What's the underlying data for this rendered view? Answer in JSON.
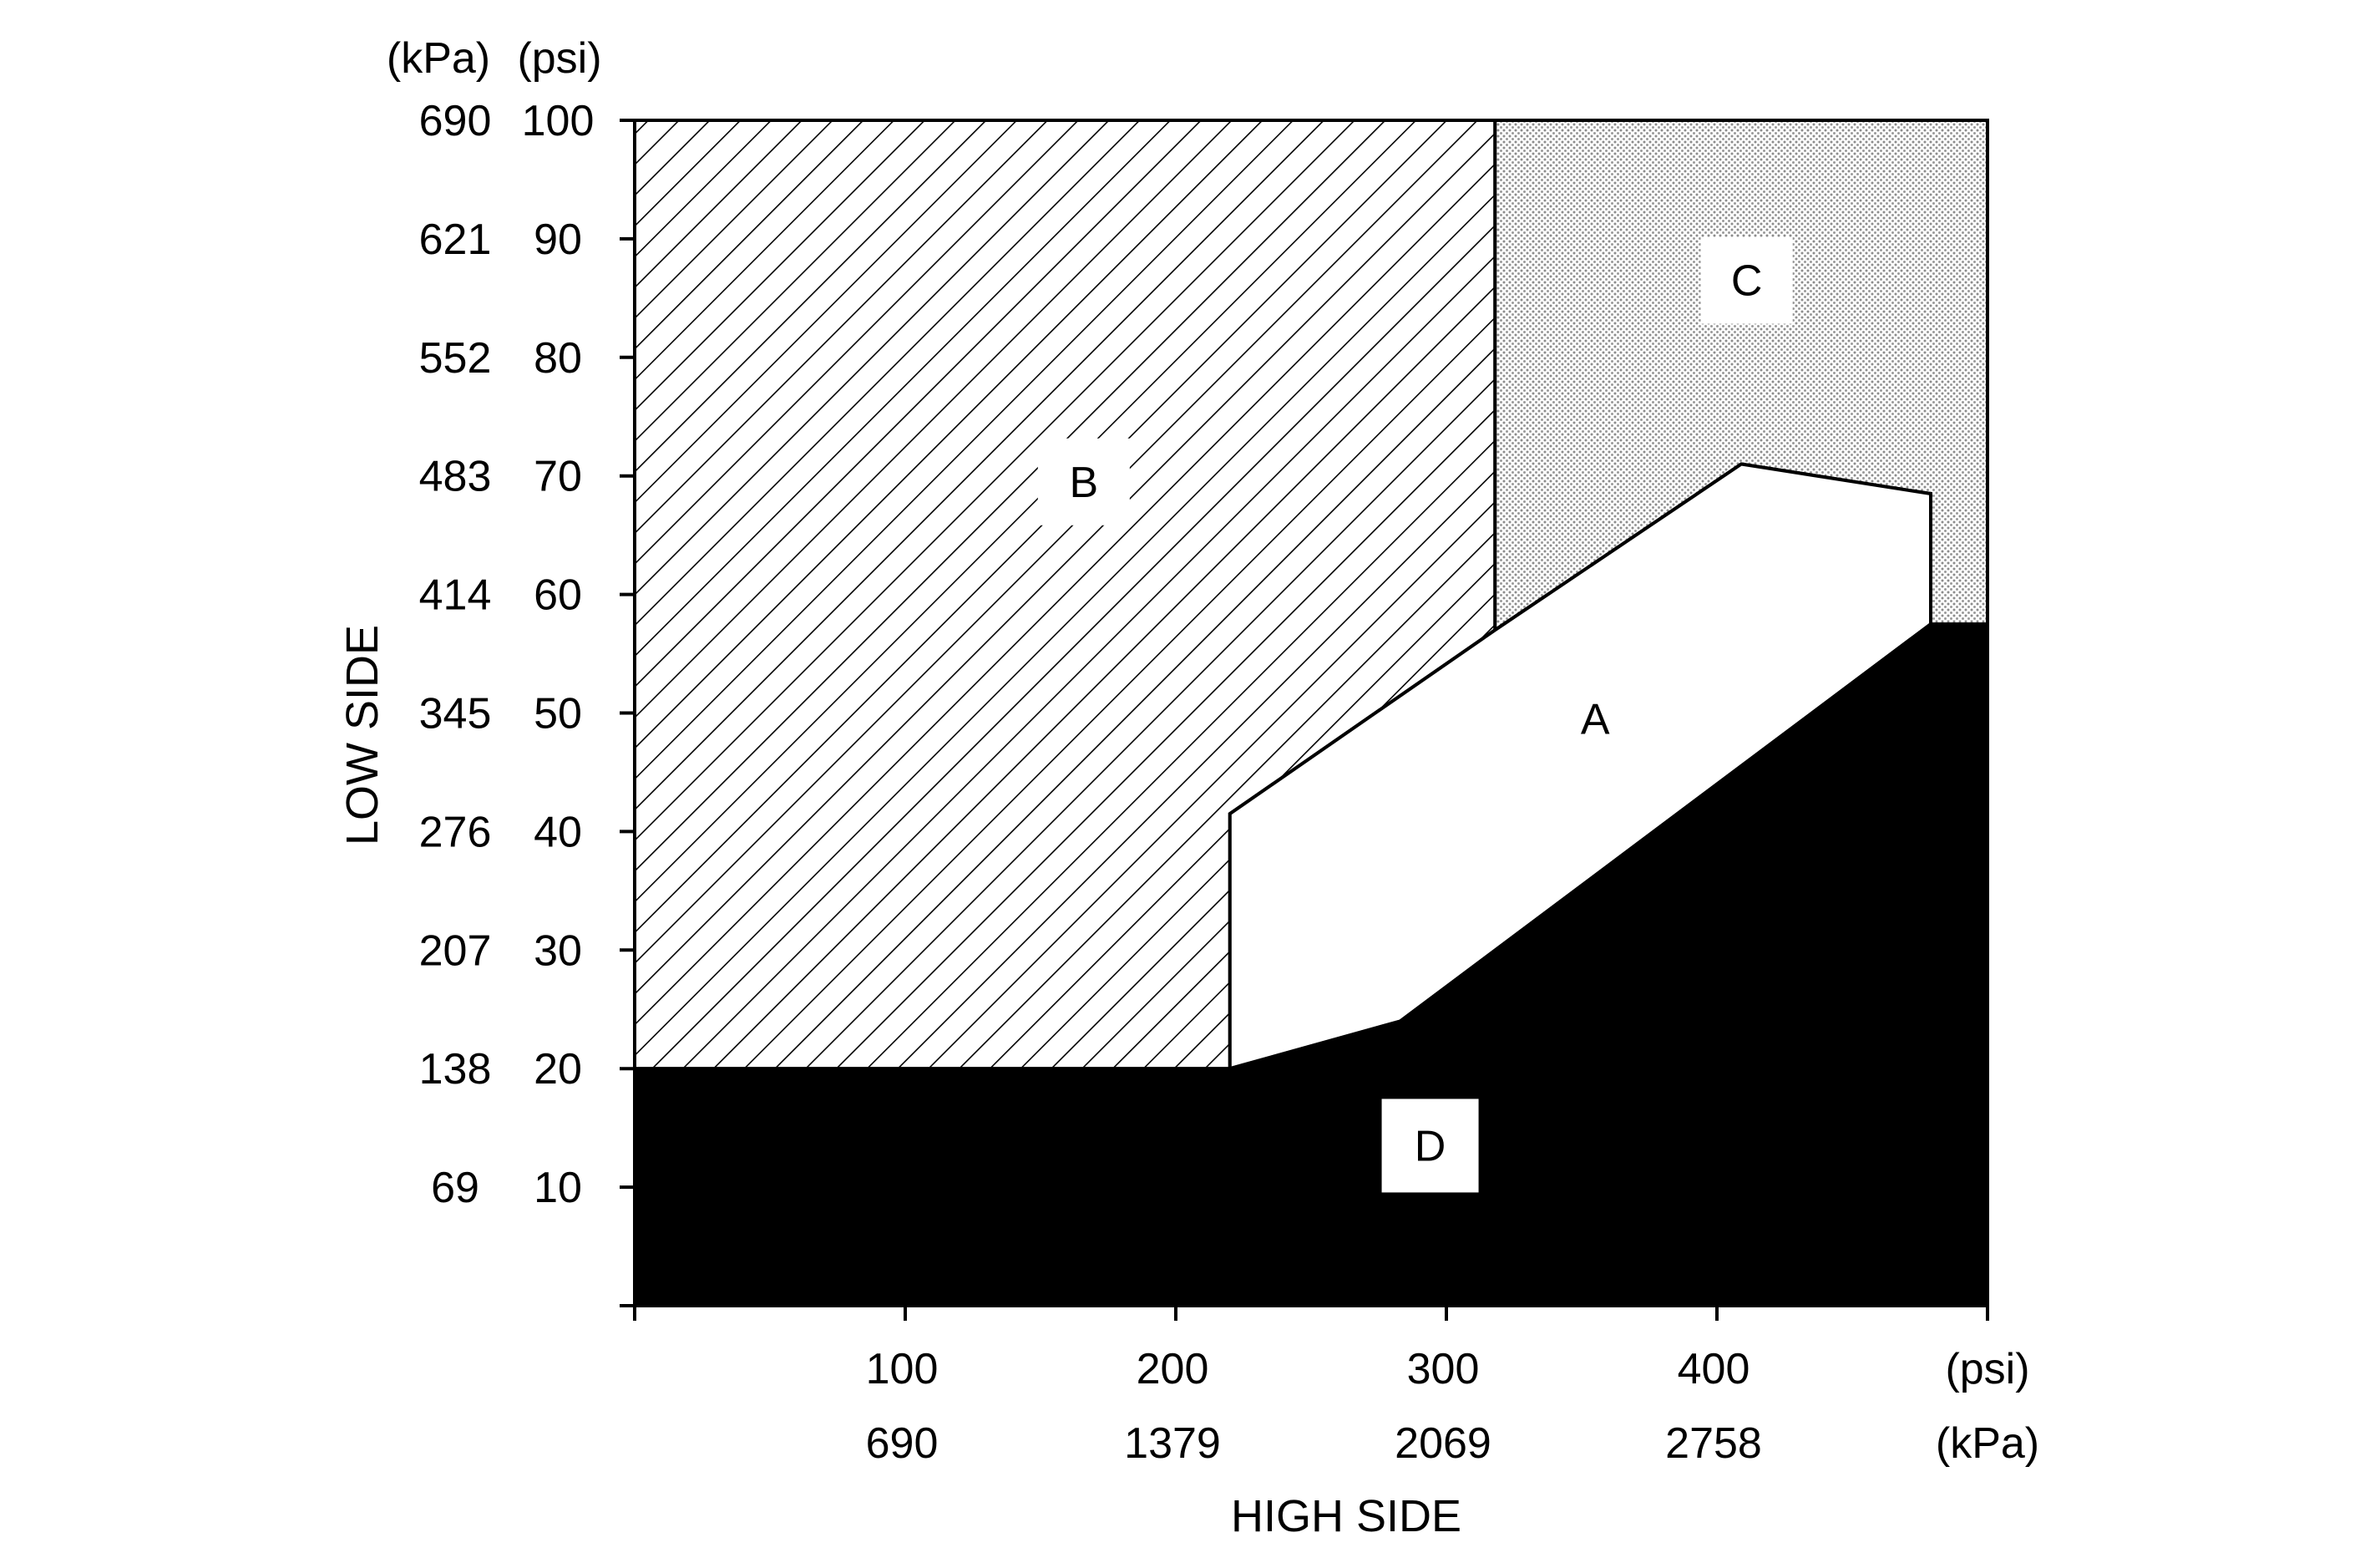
{
  "chart_data": {
    "type": "area",
    "title": "",
    "xlabel": "HIGH SIDE",
    "ylabel": "LOW SIDE",
    "x_unit_psi": "(psi)",
    "x_unit_kpa": "(kPa)",
    "y_unit_kpa": "(kPa)",
    "y_unit_psi": "(psi)",
    "xlim": [
      0,
      500
    ],
    "ylim": [
      0,
      100
    ],
    "x_ticks": [
      {
        "value": 100,
        "psi": "100",
        "kpa": "690"
      },
      {
        "value": 200,
        "psi": "200",
        "kpa": "1379"
      },
      {
        "value": 300,
        "psi": "300",
        "kpa": "2069"
      },
      {
        "value": 400,
        "psi": "400",
        "kpa": "2758"
      }
    ],
    "y_ticks": [
      {
        "value": 100,
        "psi": "100",
        "kpa": "690"
      },
      {
        "value": 90,
        "psi": "90",
        "kpa": "621"
      },
      {
        "value": 80,
        "psi": "80",
        "kpa": "552"
      },
      {
        "value": 70,
        "psi": "70",
        "kpa": "483"
      },
      {
        "value": 60,
        "psi": "60",
        "kpa": "414"
      },
      {
        "value": 50,
        "psi": "50",
        "kpa": "345"
      },
      {
        "value": 40,
        "psi": "40",
        "kpa": "276"
      },
      {
        "value": 30,
        "psi": "30",
        "kpa": "207"
      },
      {
        "value": 20,
        "psi": "20",
        "kpa": "138"
      },
      {
        "value": 10,
        "psi": "10",
        "kpa": "69"
      }
    ],
    "regions": [
      {
        "label": "B",
        "fill": "hatch",
        "polygon": [
          [
            0,
            100
          ],
          [
            318,
            100
          ],
          [
            318,
            57
          ],
          [
            220,
            41.5
          ],
          [
            220,
            20
          ],
          [
            0,
            20
          ]
        ],
        "label_at": [
          166,
          69.5
        ]
      },
      {
        "label": "C",
        "fill": "dots",
        "polygon": [
          [
            318,
            100
          ],
          [
            500,
            100
          ],
          [
            500,
            57.5
          ],
          [
            479,
            57.5
          ],
          [
            479,
            68.5
          ],
          [
            409,
            71
          ],
          [
            318,
            57
          ]
        ],
        "label_at": [
          411,
          86.5
        ]
      },
      {
        "label": "A",
        "fill": "#ffffff",
        "polygon": [
          [
            220,
            41.5
          ],
          [
            318,
            57
          ],
          [
            409,
            71
          ],
          [
            479,
            68.5
          ],
          [
            479,
            57.5
          ],
          [
            283,
            24
          ],
          [
            220,
            20
          ]
        ],
        "label_at": [
          355,
          49.5
        ]
      },
      {
        "label": "D",
        "fill": "#000000",
        "polygon": [
          [
            0,
            0
          ],
          [
            500,
            0
          ],
          [
            500,
            57.5
          ],
          [
            479,
            57.5
          ],
          [
            283,
            24
          ],
          [
            220,
            20
          ],
          [
            0,
            20
          ]
        ],
        "label_at": [
          294,
          13.5
        ]
      }
    ],
    "colors": {
      "dots": "#9a9a9a",
      "solid": "#000000",
      "clear": "#ffffff"
    },
    "grid": false,
    "legend": "none"
  }
}
